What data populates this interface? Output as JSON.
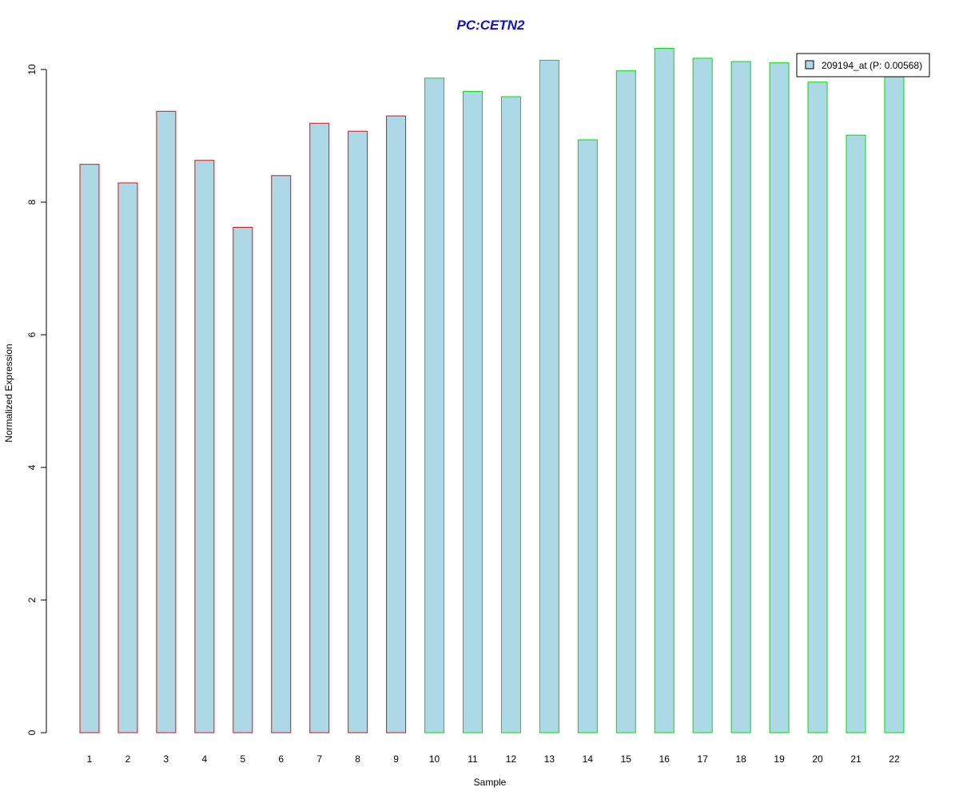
{
  "chart_data": {
    "type": "bar",
    "title": "PC:CETN2",
    "xlabel": "Sample",
    "ylabel": "Normalized Expression",
    "categories": [
      "1",
      "2",
      "3",
      "4",
      "5",
      "6",
      "7",
      "8",
      "9",
      "10",
      "11",
      "12",
      "13",
      "14",
      "15",
      "16",
      "17",
      "18",
      "19",
      "20",
      "21",
      "22"
    ],
    "values": [
      8.57,
      8.29,
      9.37,
      8.63,
      7.62,
      8.4,
      9.19,
      9.07,
      9.3,
      9.87,
      9.67,
      9.59,
      10.14,
      8.94,
      9.98,
      10.32,
      10.17,
      10.12,
      10.1,
      9.81,
      9.01,
      9.93
    ],
    "groups": [
      {
        "samples": "1-9",
        "border_color": "#e01010"
      },
      {
        "samples": "10-22",
        "border_color": "#00e000"
      }
    ],
    "bar_group_index": [
      0,
      0,
      0,
      0,
      0,
      0,
      0,
      0,
      0,
      1,
      1,
      1,
      1,
      1,
      1,
      1,
      1,
      1,
      1,
      1,
      1,
      1
    ],
    "bar_fill": "#add8e6",
    "ylim": [
      0,
      10.4
    ],
    "yticks": [
      0,
      2,
      4,
      6,
      8,
      10
    ],
    "legend": {
      "label": "209194_at (P: 0.00568)",
      "placement": "top-right"
    },
    "grid": false,
    "colors": {
      "title": "#1010cc"
    }
  }
}
